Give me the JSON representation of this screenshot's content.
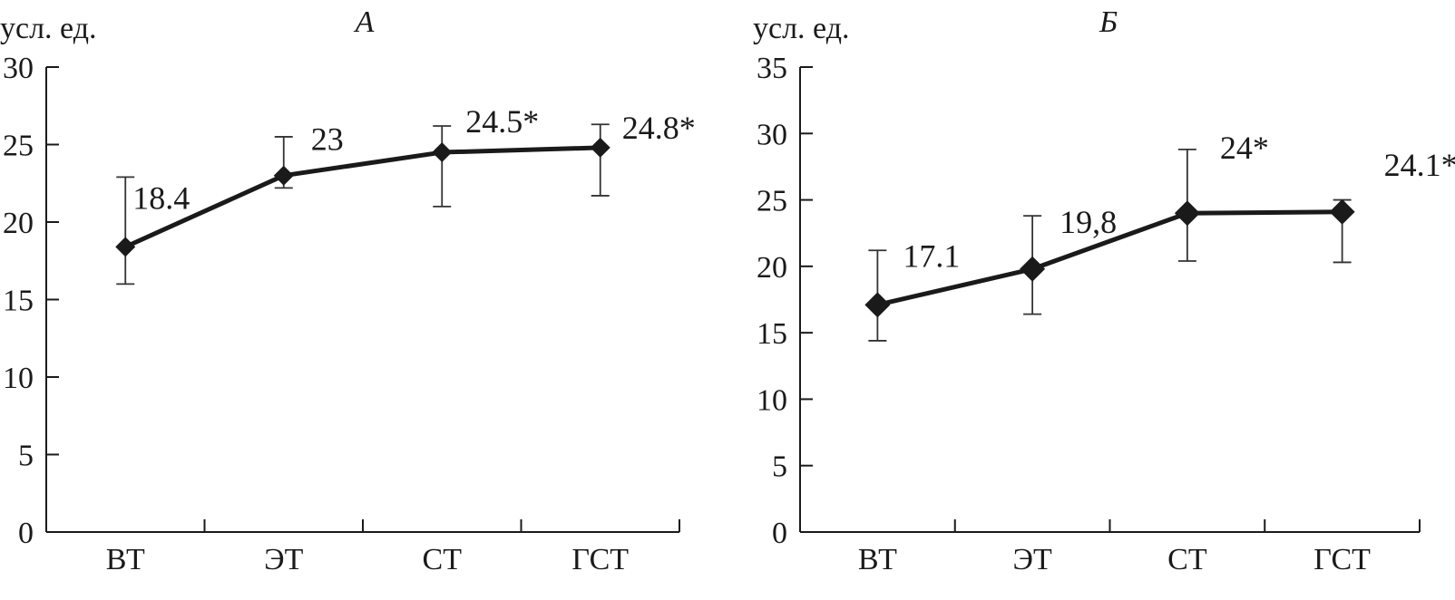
{
  "chart_data": [
    {
      "type": "line",
      "title": "А",
      "ylabel": "усл. ед.",
      "xlabel": "",
      "categories": [
        "ВТ",
        "ЭТ",
        "СТ",
        "ГСТ"
      ],
      "values": [
        18.4,
        23,
        24.5,
        24.8
      ],
      "error_low": [
        16.0,
        22.2,
        21.0,
        21.7
      ],
      "error_high": [
        22.9,
        25.5,
        26.2,
        26.3
      ],
      "point_labels": [
        "18.4",
        "23",
        "24.5*",
        "24.8*"
      ],
      "ylim": [
        0,
        30
      ],
      "yticks": [
        "0",
        "5",
        "10",
        "15",
        "20",
        "25",
        "30"
      ],
      "grid": false,
      "marker": "diamond",
      "line_color": "#1a1a1a"
    },
    {
      "type": "line",
      "title": "Б",
      "ylabel": "усл. ед.",
      "xlabel": "",
      "categories": [
        "ВТ",
        "ЭТ",
        "СТ",
        "ГСТ"
      ],
      "values": [
        17.1,
        19.8,
        24,
        24.1
      ],
      "error_low": [
        14.4,
        16.4,
        20.4,
        20.3
      ],
      "error_high": [
        21.2,
        23.8,
        28.8,
        25.0
      ],
      "point_labels": [
        "17.1",
        "19,8",
        "24*",
        "24.1*"
      ],
      "ylim": [
        0,
        35
      ],
      "yticks": [
        "0",
        "5",
        "10",
        "15",
        "20",
        "25",
        "30",
        "35"
      ],
      "grid": false,
      "marker": "diamond",
      "line_color": "#1a1a1a"
    }
  ]
}
